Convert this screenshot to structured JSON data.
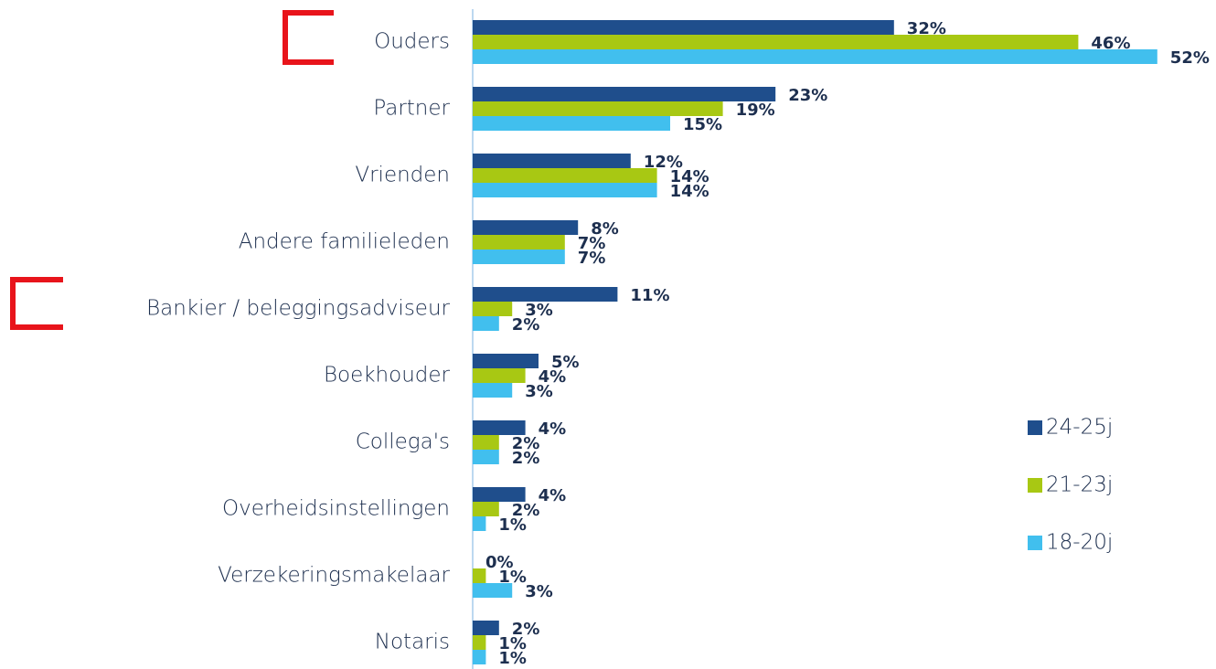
{
  "chart_data": {
    "type": "hbar",
    "categories": [
      "Ouders",
      "Partner",
      "Vrienden",
      "Andere familieleden",
      "Bankier / beleggingsadviseur",
      "Boekhouder",
      "Collega's",
      "Overheidsinstellingen",
      "Verzekeringsmakelaar",
      "Notaris"
    ],
    "series": [
      {
        "name": "24-25j",
        "color": "#1f4e8c",
        "values": [
          32,
          23,
          12,
          8,
          11,
          5,
          4,
          4,
          0,
          2
        ],
        "value_labels": [
          "32%",
          "23%",
          "12%",
          "8%",
          "11%",
          "5%",
          "4%",
          "4%",
          "0%",
          "2%"
        ]
      },
      {
        "name": "21-23j",
        "color": "#a8c813",
        "values": [
          46,
          19,
          14,
          7,
          3,
          4,
          2,
          2,
          1,
          1
        ],
        "value_labels": [
          "46%",
          "19%",
          "14%",
          "7%",
          "3%",
          "4%",
          "2%",
          "2%",
          "1%",
          "1%"
        ]
      },
      {
        "name": "18-20j",
        "color": "#41bfee",
        "values": [
          52,
          15,
          14,
          7,
          2,
          3,
          2,
          1,
          3,
          1
        ],
        "value_labels": [
          "52%",
          "15%",
          "14%",
          "7%",
          "2%",
          "3%",
          "2%",
          "1%",
          "3%",
          "1%"
        ]
      }
    ],
    "xlim": [
      0,
      55
    ],
    "legend": "right"
  }
}
